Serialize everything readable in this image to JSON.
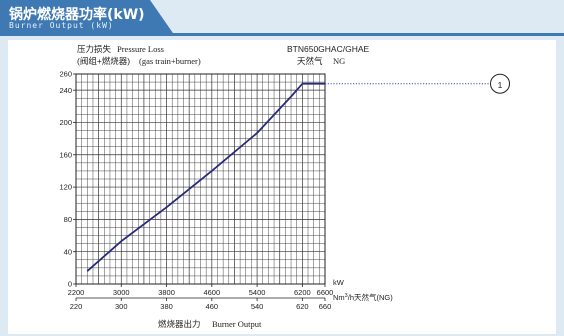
{
  "header": {
    "title": "锅炉燃烧器功率(kW)",
    "subtitle": "Burner Output (kW)"
  },
  "chart_data": {
    "type": "line",
    "model": "BTN650GHAC/GHAE",
    "fuel_cn": "天然气",
    "fuel_en": "NG",
    "ylabel_cn_1": "压力损失",
    "ylabel_en_1": "Pressure Loss",
    "ylabel_cn_2": "(阀组+燃烧器)",
    "ylabel_en_2": "(gas train+burner)",
    "xlabel_cn": "燃烧器出力",
    "xlabel_en": "Burner Output",
    "x_unit": "kW",
    "x2_unit_pre": "Nm",
    "x2_unit_sup": "3",
    "x2_unit_post": "/h天然气(NG)",
    "xlim": [
      2200,
      6600
    ],
    "ylim": [
      0,
      260
    ],
    "x_ticks": [
      2200,
      3000,
      3800,
      4600,
      5400,
      6200,
      6600
    ],
    "x_tick_labels": [
      "2200",
      "3000",
      "3800",
      "4600",
      "5400",
      "6200",
      "6600"
    ],
    "x2_ticks": [
      220,
      300,
      380,
      460,
      540,
      620,
      660
    ],
    "x2_tick_labels": [
      "220",
      "300",
      "380",
      "460",
      "540",
      "620",
      "660"
    ],
    "y_ticks": [
      0,
      40,
      80,
      120,
      160,
      200,
      240,
      260
    ],
    "y_tick_labels": [
      "0",
      "40",
      "80",
      "120",
      "160",
      "200",
      "240",
      "260"
    ],
    "grid": true,
    "series": [
      {
        "values_xy": [
          [
            2400,
            16
          ],
          [
            3000,
            53
          ],
          [
            3800,
            95
          ],
          [
            4600,
            140
          ],
          [
            5400,
            187
          ],
          [
            6000,
            232
          ],
          [
            6200,
            248
          ]
        ]
      }
    ],
    "annotation": {
      "label": "1",
      "y": 248
    }
  },
  "colors": {
    "header": "#3f79b3",
    "curve": "#2a2a7a",
    "leader": "#3b4aa8"
  }
}
